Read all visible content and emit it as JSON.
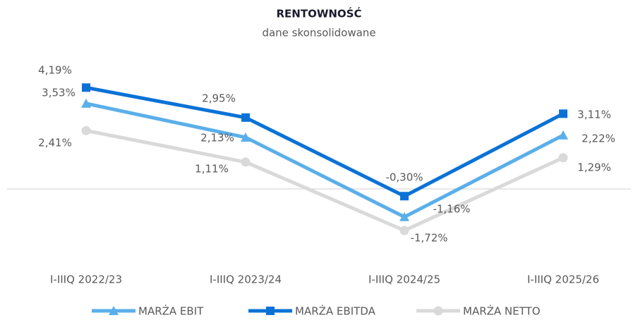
{
  "chart_data": {
    "type": "line",
    "title": "RENTOWNOŚĆ",
    "subtitle": "dane skonsolidowane",
    "categories": [
      "I-IIIQ 2022/23",
      "I-IIIQ 2023/24",
      "I-IIIQ 2024/25",
      "I-IIIQ 2025/26"
    ],
    "series": [
      {
        "name": "MARŻA EBIT",
        "color": "#5aafea",
        "marker": "triangle",
        "values": [
          3.53,
          2.13,
          -1.16,
          2.22
        ],
        "value_labels": [
          "3,53%",
          "2,13%",
          "-1,16%",
          "2,22%"
        ]
      },
      {
        "name": "MARŻA EBITDA",
        "color": "#0a72d6",
        "marker": "square",
        "values": [
          4.19,
          2.95,
          -0.3,
          3.11
        ],
        "value_labels": [
          "4,19%",
          "2,95%",
          "-0,30%",
          "3,11%"
        ]
      },
      {
        "name": "MARŻA NETTO",
        "color": "#d9d9d9",
        "marker": "circle",
        "values": [
          2.41,
          1.11,
          -1.72,
          1.29
        ],
        "value_labels": [
          "2,41%",
          "1,11%",
          "-1,72%",
          "1,29%"
        ]
      }
    ]
  }
}
